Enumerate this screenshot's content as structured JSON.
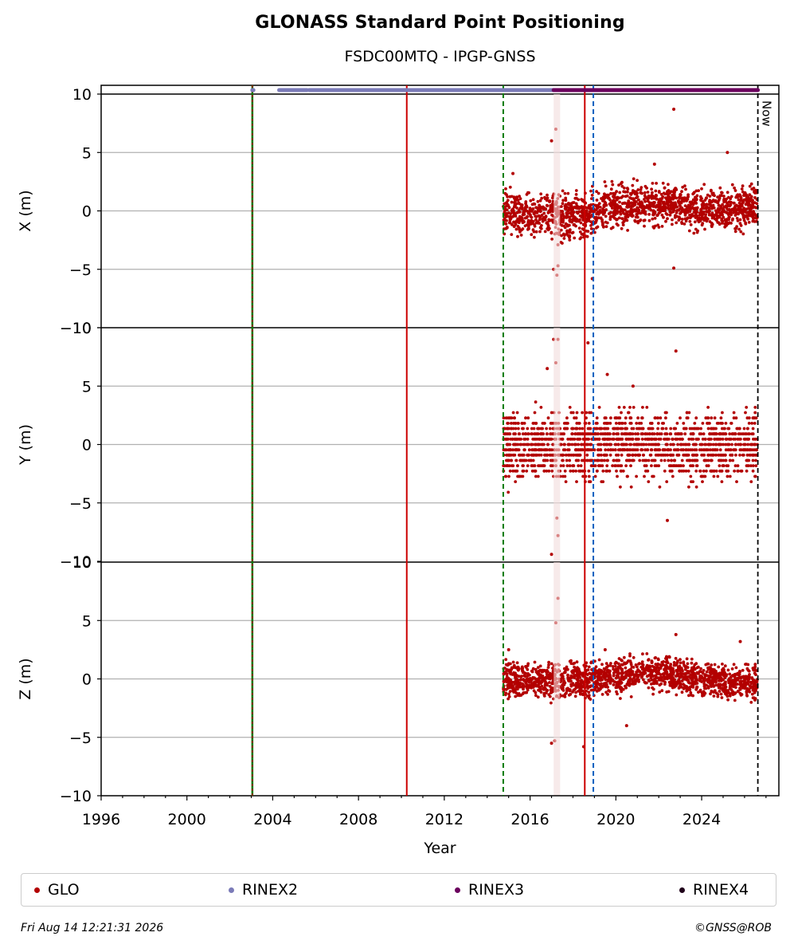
{
  "title": "GLONASS Standard Point Positioning",
  "subtitle": "FSDC00MTQ - IPGP-GNSS",
  "footer": {
    "timestamp": "Fri Aug 14 12:21:31 2026",
    "credit": "©GNSS@ROB"
  },
  "colors": {
    "glo": "#b30000",
    "rinex2": "#7b7bb8",
    "rinex3": "#6b005e",
    "rinex4": "#20001a",
    "green": "#007a00",
    "blue": "#005fbf",
    "red": "#cc0000",
    "grid": "#b0b0b0"
  },
  "legend": [
    {
      "label": "GLO",
      "color": "#b30000"
    },
    {
      "label": "RINEX2",
      "color": "#7b7bb8"
    },
    {
      "label": "RINEX3",
      "color": "#6b005e"
    },
    {
      "label": "RINEX4",
      "color": "#20001a"
    }
  ],
  "chart_data": {
    "type": "scatter",
    "xlabel": "Year",
    "xlim": [
      1996,
      2027.6
    ],
    "xticks": [
      "1996",
      "2000",
      "2004",
      "2008",
      "2012",
      "2016",
      "2020",
      "2024"
    ],
    "now_label": "Now",
    "now_year": 2026.62,
    "panels": [
      {
        "ylabel": "X (m)",
        "ylim": [
          -10,
          10
        ],
        "yticks": [
          "−10",
          "−5",
          "0",
          "5",
          "10"
        ],
        "band_center": [
          [
            2014.8,
            -0.1
          ],
          [
            2016.5,
            -0.4
          ],
          [
            2018.6,
            -0.5
          ],
          [
            2019.5,
            0.3
          ],
          [
            2021.5,
            0.5
          ],
          [
            2022.5,
            0.6
          ],
          [
            2024.0,
            0.2
          ],
          [
            2026.6,
            0.3
          ]
        ],
        "band_halfwidth": 1.6,
        "outliers": [
          [
            2017.0,
            6.0
          ],
          [
            2017.2,
            7.0
          ],
          [
            2017.25,
            -5.5
          ],
          [
            2017.3,
            -4.7
          ],
          [
            2017.1,
            -5.0
          ],
          [
            2018.9,
            -5.8
          ],
          [
            2022.7,
            8.7
          ],
          [
            2022.7,
            -4.9
          ],
          [
            2025.2,
            5.0
          ],
          [
            2021.8,
            4.0
          ],
          [
            2017.3,
            -2.9
          ],
          [
            2015.2,
            3.2
          ]
        ]
      },
      {
        "ylabel": "Y (m)",
        "ylim": [
          -10,
          10
        ],
        "yticks": [
          "−10",
          "−5",
          "0",
          "5",
          "10"
        ],
        "band_center": [
          [
            2014.8,
            -0.3
          ],
          [
            2017.0,
            0.0
          ],
          [
            2019.0,
            0.0
          ],
          [
            2021.0,
            0.2
          ],
          [
            2023.0,
            -0.4
          ],
          [
            2026.6,
            0.0
          ]
        ],
        "band_halfwidth": 2.5,
        "quantized": true,
        "outliers": [
          [
            2017.1,
            9.0
          ],
          [
            2017.3,
            9.0
          ],
          [
            2017.2,
            7.0
          ],
          [
            2017.0,
            -9.4
          ],
          [
            2017.3,
            -7.8
          ],
          [
            2017.25,
            -6.3
          ],
          [
            2018.7,
            8.7
          ],
          [
            2019.6,
            6.0
          ],
          [
            2020.8,
            5.0
          ],
          [
            2022.8,
            8.0
          ],
          [
            2022.4,
            -6.5
          ],
          [
            2016.8,
            6.5
          ]
        ]
      },
      {
        "ylabel": "Z (m)",
        "ylim": [
          -10,
          10
        ],
        "yticks": [
          "−10",
          "−5",
          "0",
          "5",
          "10"
        ],
        "band_center": [
          [
            2014.8,
            0.0
          ],
          [
            2017.0,
            -0.2
          ],
          [
            2019.5,
            0.1
          ],
          [
            2022.0,
            0.6
          ],
          [
            2024.0,
            0.0
          ],
          [
            2026.6,
            -0.4
          ]
        ],
        "band_halfwidth": 1.3,
        "outliers": [
          [
            2017.3,
            6.9
          ],
          [
            2017.2,
            4.8
          ],
          [
            2017.0,
            -5.5
          ],
          [
            2017.15,
            -5.3
          ],
          [
            2018.5,
            -5.8
          ],
          [
            2020.5,
            -4.0
          ],
          [
            2022.8,
            3.8
          ],
          [
            2025.8,
            3.2
          ],
          [
            2015.0,
            2.5
          ],
          [
            2019.5,
            2.5
          ]
        ]
      }
    ],
    "vertical_lines": [
      {
        "year": 2003.05,
        "style": "solid-green-red"
      },
      {
        "year": 2010.25,
        "style": "solid",
        "color": "red"
      },
      {
        "year": 2014.75,
        "style": "dashed",
        "color": "green"
      },
      {
        "year": 2018.55,
        "style": "solid",
        "color": "red"
      },
      {
        "year": 2018.95,
        "style": "dashed",
        "color": "blue"
      }
    ],
    "rinex_coverage": [
      {
        "label": "RINEX2",
        "color": "#7b7bb8",
        "ranges": [
          [
            2003.05,
            2003.1
          ],
          [
            2004.3,
            2005.6
          ],
          [
            2005.7,
            2017.1
          ]
        ]
      },
      {
        "label": "RINEX3",
        "color": "#6b005e",
        "ranges": [
          [
            2017.1,
            2026.62
          ]
        ]
      }
    ],
    "data_range": [
      2014.75,
      2026.6
    ]
  }
}
